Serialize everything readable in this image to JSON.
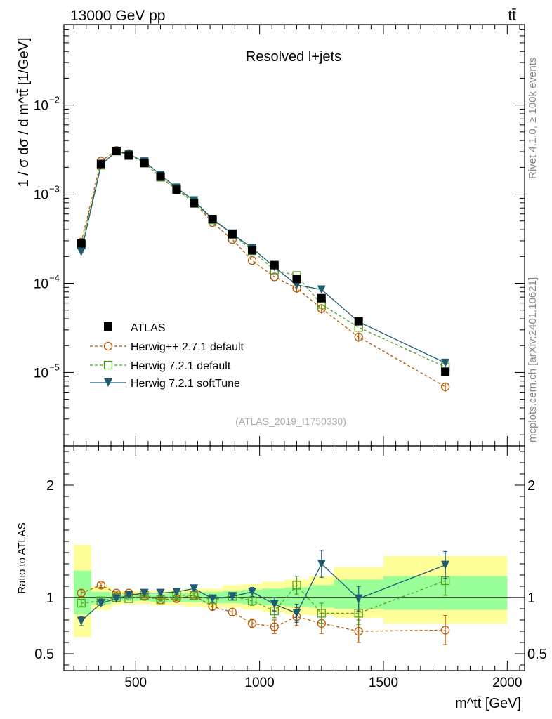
{
  "header": {
    "left_label": "13000 GeV pp",
    "right_label": "tt̄"
  },
  "side_labels": {
    "rivet": "Rivet 4.1.0, ≥ 100k events",
    "mcplots": "mcplots.cern.ch [arXiv:2401.10621]"
  },
  "colors": {
    "atlas": "#000000",
    "herwigpp": "#b35900",
    "herwig_default": "#4fa31c",
    "herwig_soft": "#1f5b73",
    "band_inner": "#99ff99",
    "band_outer": "#ffff99"
  },
  "chart_data": [
    {
      "type": "scatter",
      "title": "Resolved l+jets",
      "analysis_id": "(ATLAS_2019_I1750330)",
      "ylabel": "1 / σ dσ / d m^tt̄ [1/GeV]",
      "yscale": "log",
      "ylim": [
        1.5e-06,
        0.08
      ],
      "xlim": [
        210,
        2070
      ],
      "ytick_labels": [
        {
          "base": "10",
          "exp": "−5",
          "value": 1e-05
        },
        {
          "base": "10",
          "exp": "−4",
          "value": 0.0001
        },
        {
          "base": "10",
          "exp": "−3",
          "value": 0.001
        },
        {
          "base": "10",
          "exp": "−2",
          "value": 0.01
        }
      ],
      "x": [
        280,
        360,
        422,
        472,
        535,
        600,
        665,
        735,
        810,
        890,
        970,
        1060,
        1150,
        1250,
        1400,
        1750
      ],
      "series": [
        {
          "name": "ATLAS",
          "marker": "square-filled",
          "values": [
            0.00028,
            0.00218,
            0.00305,
            0.00272,
            0.00223,
            0.00158,
            0.00112,
            0.00079,
            0.000525,
            0.000355,
            0.000235,
            0.00016,
            0.000112,
            6.8e-05,
            3.75e-05,
            1.02e-05
          ]
        },
        {
          "name": "Herwig++ 2.7.1 default",
          "marker": "circle-open",
          "style": "dashed",
          "values": [
            0.00029,
            0.00235,
            0.0031,
            0.00285,
            0.00225,
            0.00155,
            0.00112,
            0.00081,
            0.00048,
            0.00031,
            0.00018,
            0.000118,
            8.8e-05,
            5.2e-05,
            2.5e-05,
            6.9e-06
          ]
        },
        {
          "name": "Herwig 7.2.1 default",
          "marker": "square-open",
          "style": "dashed",
          "values": [
            0.00027,
            0.00212,
            0.00305,
            0.00272,
            0.00225,
            0.00155,
            0.00114,
            0.00081,
            0.000515,
            0.00036,
            0.000232,
            0.000141,
            0.000122,
            5.8e-05,
            3.2e-05,
            1.15e-05
          ]
        },
        {
          "name": "Herwig 7.2.1 softTune",
          "marker": "triangle-down-filled",
          "style": "solid",
          "values": [
            0.000225,
            0.00212,
            0.00305,
            0.0028,
            0.00232,
            0.00165,
            0.00118,
            0.00085,
            0.000525,
            0.00036,
            0.000248,
            0.000152,
            9.6e-05,
            8.5e-05,
            3.7e-05,
            1.28e-05
          ]
        }
      ]
    },
    {
      "type": "scatter",
      "ylabel": "Ratio to ATLAS",
      "xlabel": "m^tt̄ [GeV]",
      "ylim": [
        0.35,
        2.35
      ],
      "xlim": [
        210,
        2070
      ],
      "ytick_labels": [
        "0.5",
        "1",
        "2"
      ],
      "yticks": [
        0.5,
        1,
        2
      ],
      "xtick_labels": [
        "500",
        "1000",
        "1500",
        "2000"
      ],
      "xticks": [
        500,
        1000,
        1500,
        2000
      ],
      "x": [
        280,
        360,
        422,
        472,
        535,
        600,
        665,
        735,
        810,
        890,
        970,
        1060,
        1150,
        1250,
        1400,
        1750
      ],
      "bin_edges": [
        250,
        320,
        400,
        440,
        500,
        560,
        630,
        700,
        770,
        850,
        930,
        1010,
        1100,
        1200,
        1300,
        1500,
        2000
      ],
      "band_outer": [
        [
          0.65,
          1.47
        ],
        [
          0.89,
          1.1
        ],
        [
          0.93,
          1.06
        ],
        [
          0.94,
          1.06
        ],
        [
          0.94,
          1.06
        ],
        [
          0.93,
          1.06
        ],
        [
          0.93,
          1.07
        ],
        [
          0.92,
          1.08
        ],
        [
          0.91,
          1.08
        ],
        [
          0.91,
          1.11
        ],
        [
          0.89,
          1.12
        ],
        [
          0.87,
          1.14
        ],
        [
          0.85,
          1.16
        ],
        [
          0.84,
          1.19
        ],
        [
          0.82,
          1.27
        ],
        [
          0.77,
          1.37
        ]
      ],
      "band_inner": [
        [
          0.85,
          1.24
        ],
        [
          0.94,
          1.05
        ],
        [
          0.97,
          1.03
        ],
        [
          0.97,
          1.03
        ],
        [
          0.97,
          1.03
        ],
        [
          0.96,
          1.03
        ],
        [
          0.96,
          1.04
        ],
        [
          0.96,
          1.04
        ],
        [
          0.95,
          1.05
        ],
        [
          0.95,
          1.06
        ],
        [
          0.94,
          1.07
        ],
        [
          0.93,
          1.08
        ],
        [
          0.92,
          1.09
        ],
        [
          0.91,
          1.11
        ],
        [
          0.9,
          1.16
        ],
        [
          0.89,
          1.19
        ]
      ],
      "series": [
        {
          "name": "Herwig++ 2.7.1 default",
          "marker": "circle-open",
          "style": "dashed",
          "values": [
            1.04,
            1.11,
            1.04,
            1.04,
            1.01,
            0.98,
            0.99,
            1.02,
            0.92,
            0.87,
            0.77,
            0.74,
            0.83,
            0.77,
            0.7,
            0.71
          ],
          "errors": [
            0.03,
            0.02,
            0.01,
            0.01,
            0.01,
            0.01,
            0.02,
            0.02,
            0.03,
            0.03,
            0.04,
            0.06,
            0.08,
            0.09,
            0.1,
            0.13
          ]
        },
        {
          "name": "Herwig 7.2.1 default",
          "marker": "square-open",
          "style": "dashed",
          "values": [
            0.95,
            0.97,
            1.0,
            0.99,
            1.02,
            0.98,
            1.02,
            1.02,
            0.98,
            1.01,
            0.97,
            0.88,
            1.11,
            0.86,
            0.86,
            1.15
          ],
          "errors": [
            0.03,
            0.02,
            0.01,
            0.01,
            0.01,
            0.01,
            0.02,
            0.02,
            0.03,
            0.03,
            0.04,
            0.06,
            0.08,
            0.09,
            0.1,
            0.13
          ]
        },
        {
          "name": "Herwig 7.2.1 softTune",
          "marker": "triangle-down-filled",
          "style": "solid",
          "values": [
            0.79,
            0.95,
            0.99,
            1.02,
            1.04,
            1.04,
            1.05,
            1.08,
            0.99,
            1.01,
            1.05,
            0.94,
            0.86,
            1.3,
            0.99,
            1.29
          ],
          "errors": [
            0.04,
            0.02,
            0.01,
            0.01,
            0.01,
            0.01,
            0.02,
            0.02,
            0.03,
            0.03,
            0.04,
            0.06,
            0.08,
            0.12,
            0.11,
            0.12
          ]
        }
      ]
    }
  ]
}
